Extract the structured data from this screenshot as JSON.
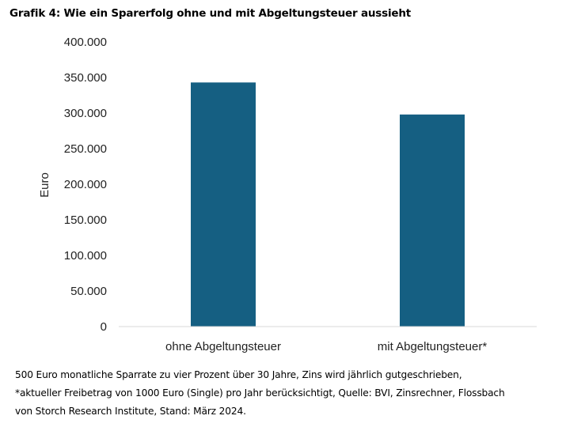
{
  "title": "Grafik 4: Wie ein Sparerfolg ohne und mit Abgeltungsteuer aussieht",
  "footnote": [
    "500 Euro monatliche Sparrate zu vier Prozent über 30 Jahre, Zins wird jährlich gutgeschrieben,",
    "*aktueller Freibetrag von 1000 Euro (Single) pro Jahr berücksichtigt, Quelle: BVI, Zinsrechner, Flossbach",
    "von Storch Research Institute, Stand: März 2024."
  ],
  "chart_data": {
    "type": "bar",
    "categories": [
      "ohne Abgeltungsteuer",
      "mit Abgeltungsteuer*"
    ],
    "values": [
      343000,
      298000
    ],
    "ylabel": "Euro",
    "ylim": [
      0,
      400000
    ],
    "yticks": [
      0,
      50000,
      100000,
      150000,
      200000,
      250000,
      300000,
      350000,
      400000
    ],
    "ytick_labels": [
      "0",
      "50.000",
      "100.000",
      "150.000",
      "200.000",
      "250.000",
      "300.000",
      "350.000",
      "400.000"
    ],
    "grid": false,
    "legend": "none",
    "bar_color": "#155f82",
    "axis_color": "#d9d9d9"
  }
}
